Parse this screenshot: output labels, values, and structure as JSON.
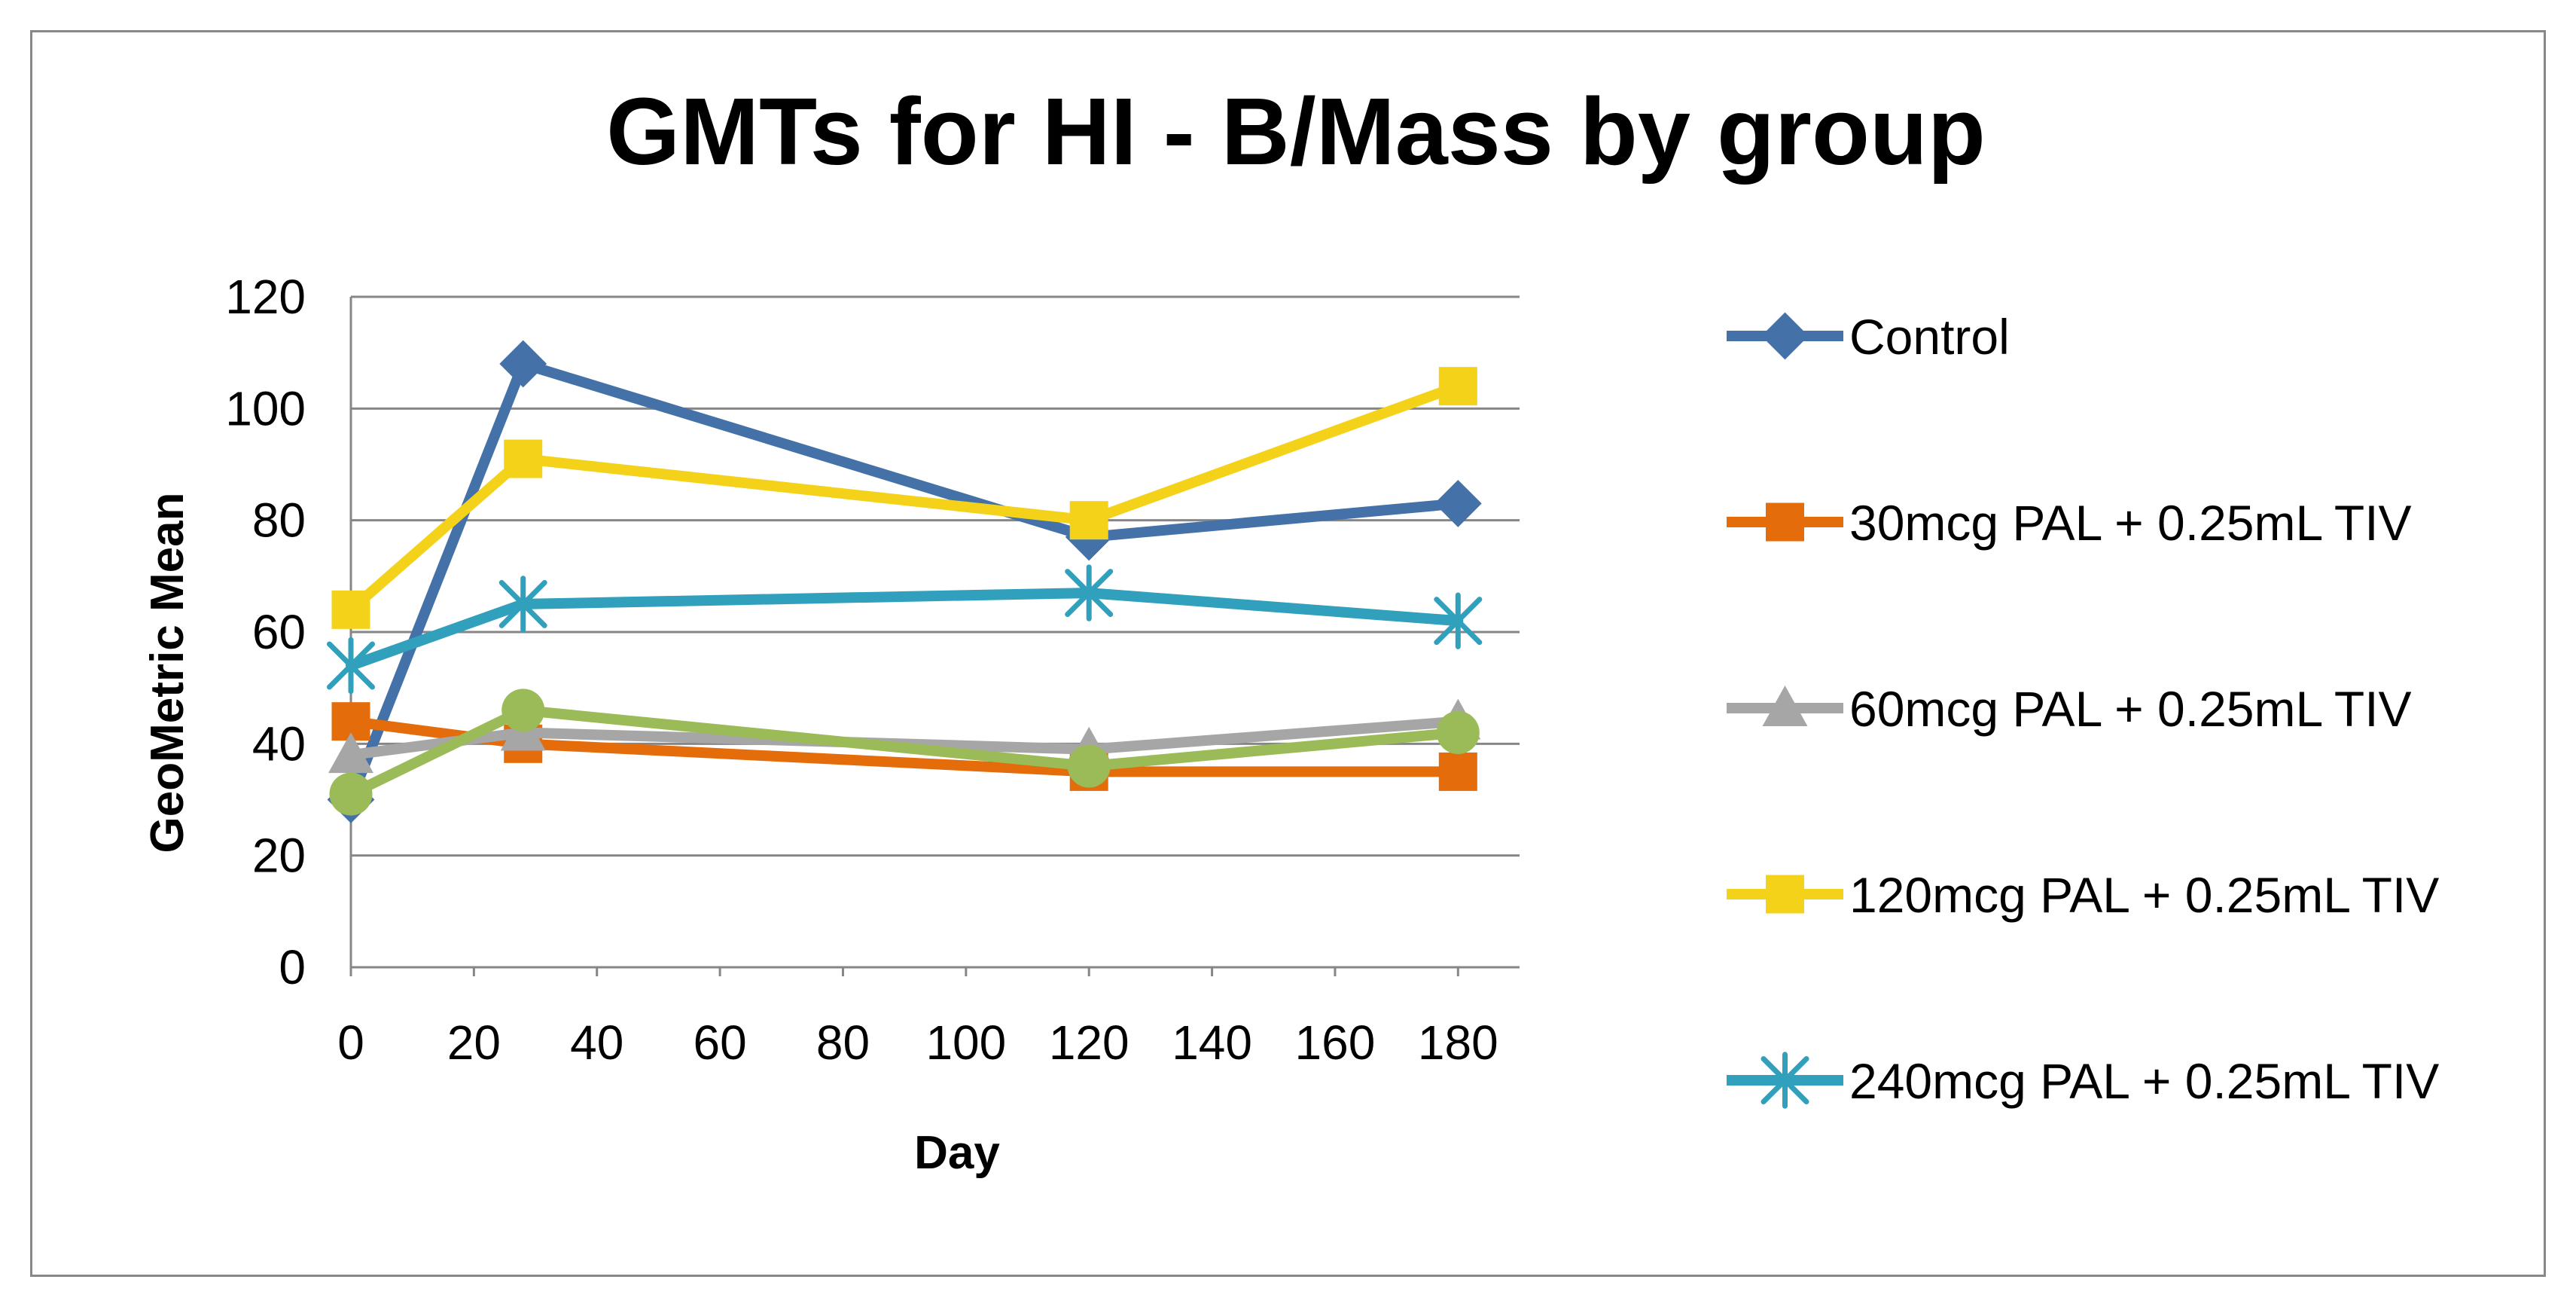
{
  "chart_data": {
    "type": "line",
    "title": "GMTs for HI - B/Mass by group",
    "xlabel": "Day",
    "ylabel": "GeoMetric Mean",
    "xlim": [
      0,
      190
    ],
    "ylim": [
      0,
      120
    ],
    "x_ticks": [
      0,
      20,
      40,
      60,
      80,
      100,
      120,
      140,
      160,
      180
    ],
    "y_ticks": [
      0,
      20,
      40,
      60,
      80,
      100,
      120
    ],
    "grid": "horizontal",
    "legend_position": "right",
    "x": [
      0,
      28,
      120,
      180
    ],
    "series": [
      {
        "name": "Control",
        "values": [
          30,
          108,
          77,
          83
        ],
        "color": "#4472A8",
        "marker": "diamond"
      },
      {
        "name": "30mcg PAL + 0.25mL TIV",
        "values": [
          44,
          40,
          35,
          35
        ],
        "color": "#E46C0A",
        "marker": "square"
      },
      {
        "name": "60mcg PAL + 0.25mL TIV",
        "values": [
          38,
          42,
          39,
          44
        ],
        "color": "#A6A6A6",
        "marker": "triangle"
      },
      {
        "name": "120mcg PAL + 0.25mL TIV",
        "values": [
          64,
          91,
          80,
          104
        ],
        "color": "#F5D21A",
        "marker": "square"
      },
      {
        "name": "240mcg PAL + 0.25mL TIV",
        "values": [
          54,
          65,
          67,
          62
        ],
        "color": "#31A0BC",
        "marker": "asterisk"
      },
      {
        "name": "",
        "values": [
          31,
          46,
          36,
          42
        ],
        "color": "#9BBB59",
        "marker": "circle"
      }
    ]
  }
}
